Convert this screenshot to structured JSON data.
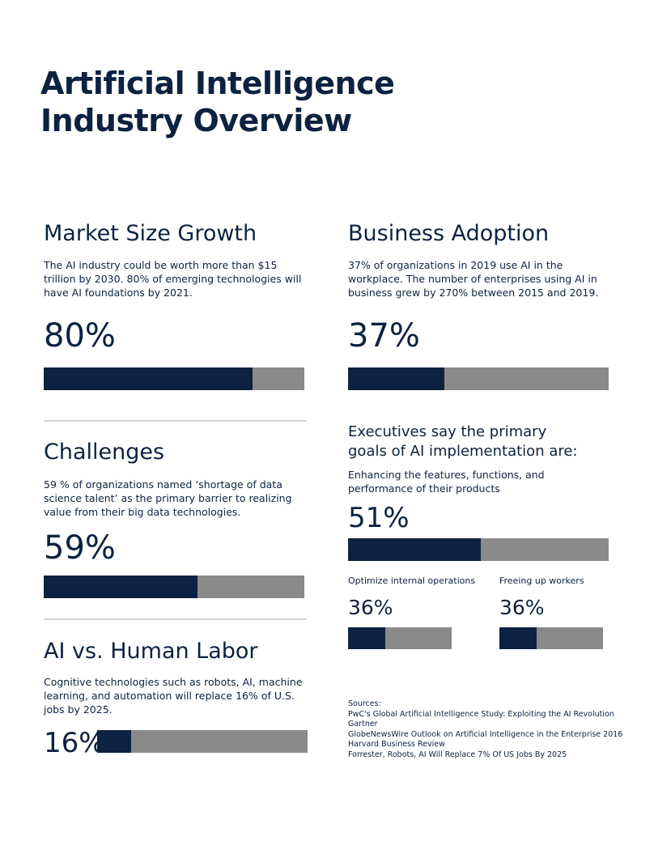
{
  "title_line1": "Artificial Intelligence",
  "title_line2": "Industry Overview",
  "market": {
    "heading": "Market Size Growth",
    "description": "The AI industry could be worth more than $15 trillion by 2030. 80% of emerging technologies will have AI foundations by 2021.",
    "stat": "80%",
    "progress": 0.8
  },
  "adoption": {
    "heading": "Business Adoption",
    "description": "37% of organizations in 2019 use AI in the workplace. The number of enterprises using AI in business grew by 270% between 2015 and 2019.",
    "stat": "37%",
    "progress": 0.37
  },
  "challenges": {
    "heading": "Challenges",
    "description": "59 % of organizations named ‘shortage of data science talent’ as the primary barrier to realizing value from their big data technologies.",
    "stat": "59%",
    "progress": 0.59
  },
  "labor": {
    "heading": "AI vs. Human Labor",
    "description": "Cognitive technologies such as robots, AI, machine learning, and automation will replace 16% of U.S. jobs by 2025.",
    "stat": "16%",
    "progress": 0.16
  },
  "goals": {
    "heading_line1": "Executives say the primary",
    "heading_line2": "goals of AI implementation are:",
    "primary": {
      "label": "Enhancing the features, functions, and performance of their products",
      "stat": "51%",
      "progress": 0.51
    },
    "internal": {
      "label": "Optimize internal operations",
      "stat": "36%",
      "progress": 0.36
    },
    "workers": {
      "label": "Freeing up workers",
      "stat": "36%",
      "progress": 0.36
    }
  },
  "sources": {
    "heading": "Sources:",
    "items": [
      "PwC's Global Artificial Intelligence Study: Exploiting the AI Revolution",
      "Gartner",
      "GlobeNewsWire Outlook on Artificial Intelligence in the Enterprise 2016",
      "Harvard Business Review",
      "Forrester, Robots, AI Will Replace 7% Of US Jobs By 2025"
    ]
  },
  "colors": {
    "navy": "#0d2240",
    "gray_bar": "#8a8a8a",
    "divider": "#d4d4d4"
  }
}
